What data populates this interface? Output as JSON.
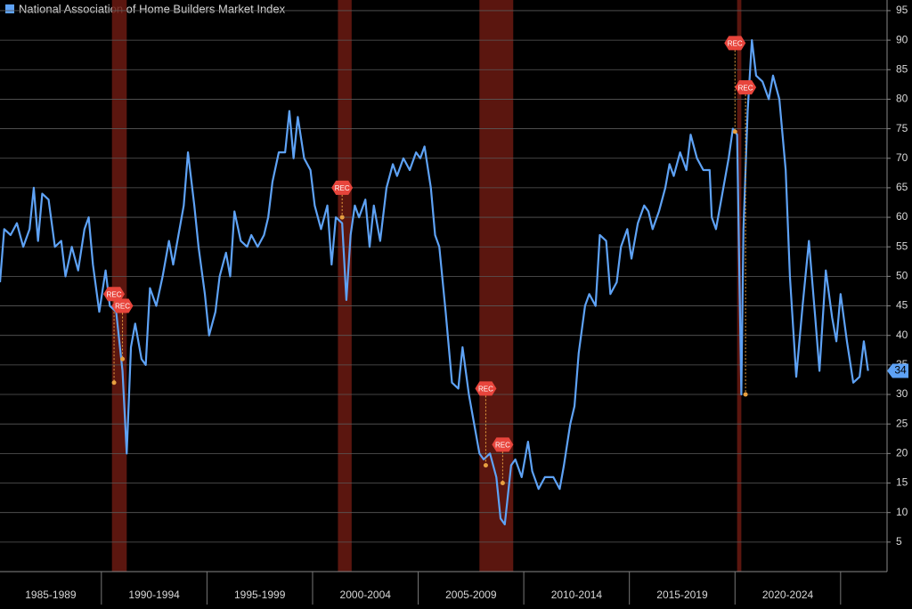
{
  "chart_data": {
    "type": "line",
    "x": [
      1985.2,
      1985.4,
      1985.7,
      1986.0,
      1986.3,
      1986.6,
      1986.8,
      1987.0,
      1987.2,
      1987.5,
      1987.8,
      1988.1,
      1988.3,
      1988.6,
      1988.9,
      1989.2,
      1989.4,
      1989.6,
      1989.9,
      1990.2,
      1990.4,
      1990.7,
      1991.0,
      1991.2,
      1991.4,
      1991.6,
      1991.9,
      1992.1,
      1992.3,
      1992.6,
      1992.9,
      1993.2,
      1993.4,
      1993.7,
      1993.9,
      1994.1,
      1994.4,
      1994.6,
      1994.9,
      1995.1,
      1995.4,
      1995.6,
      1995.9,
      1996.1,
      1996.3,
      1996.6,
      1996.9,
      1997.1,
      1997.4,
      1997.7,
      1997.9,
      1998.1,
      1998.4,
      1998.7,
      1998.9,
      1999.1,
      1999.3,
      1999.6,
      1999.9,
      2000.1,
      2000.4,
      2000.7,
      2000.9,
      2001.1,
      2001.4,
      2001.6,
      2001.8,
      2002.0,
      2002.2,
      2002.5,
      2002.7,
      2002.9,
      2003.2,
      2003.5,
      2003.8,
      2004.0,
      2004.3,
      2004.6,
      2004.9,
      2005.1,
      2005.3,
      2005.6,
      2005.8,
      2006.0,
      2006.3,
      2006.6,
      2006.9,
      2007.1,
      2007.4,
      2007.7,
      2007.9,
      2008.1,
      2008.4,
      2008.7,
      2008.9,
      2009.1,
      2009.4,
      2009.6,
      2009.9,
      2010.2,
      2010.4,
      2010.7,
      2011.0,
      2011.4,
      2011.7,
      2011.9,
      2012.2,
      2012.4,
      2012.6,
      2012.9,
      2013.1,
      2013.4,
      2013.6,
      2013.9,
      2014.1,
      2014.4,
      2014.6,
      2014.9,
      2015.1,
      2015.4,
      2015.7,
      2015.9,
      2016.1,
      2016.4,
      2016.7,
      2016.9,
      2017.1,
      2017.4,
      2017.7,
      2017.9,
      2018.2,
      2018.5,
      2018.8,
      2018.9,
      2019.1,
      2019.4,
      2019.7,
      2019.9,
      2020.1,
      2020.3,
      2020.4,
      2020.6,
      2020.8,
      2021.0,
      2021.3,
      2021.6,
      2021.8,
      2022.1,
      2022.4,
      2022.6,
      2022.9,
      2023.2,
      2023.5,
      2023.8,
      2024.0,
      2024.3,
      2024.6,
      2024.8,
      2025.0,
      2025.3,
      2025.6,
      2025.9,
      2026.1,
      2026.3
    ],
    "series": [
      {
        "name": "National Association of Home Builders Market Index",
        "color": "#5ea2f5",
        "values": [
          49,
          58,
          57,
          59,
          55,
          58,
          65,
          56,
          64,
          63,
          55,
          56,
          50,
          55,
          51,
          58,
          60,
          52,
          44,
          51,
          45,
          44,
          34,
          20,
          38,
          42,
          36,
          35,
          48,
          45,
          50,
          56,
          52,
          58,
          62,
          71,
          62,
          55,
          47,
          40,
          44,
          50,
          54,
          50,
          61,
          56,
          55,
          57,
          55,
          57,
          60,
          66,
          71,
          71,
          78,
          70,
          77,
          70,
          68,
          62,
          58,
          62,
          52,
          60,
          59,
          46,
          57,
          62,
          60,
          63,
          55,
          62,
          56,
          65,
          69,
          67,
          70,
          68,
          71,
          70,
          72,
          65,
          57,
          55,
          44,
          32,
          31,
          38,
          30,
          24,
          20,
          19,
          20,
          16,
          9,
          8,
          18,
          19,
          16,
          22,
          17,
          14,
          16,
          16,
          14,
          18,
          25,
          28,
          37,
          45,
          47,
          45,
          57,
          56,
          47,
          49,
          55,
          58,
          53,
          59,
          62,
          61,
          58,
          61,
          65,
          69,
          67,
          71,
          68,
          74,
          70,
          68,
          68,
          60,
          58,
          64,
          70,
          75,
          74,
          30,
          58,
          78,
          90,
          84,
          83,
          80,
          84,
          80,
          68,
          50,
          33,
          45,
          56,
          43,
          34,
          51,
          43,
          39,
          47,
          39,
          32,
          33,
          39,
          34
        ]
      }
    ],
    "xlim": [
      1985.2,
      2027.2
    ],
    "xticks": [
      1990,
      1995,
      2000,
      2005,
      2010,
      2015,
      2020,
      2025
    ],
    "period_labels": [
      "1985-1989",
      "1990-1994",
      "1995-1999",
      "2000-2004",
      "2005-2009",
      "2010-2014",
      "2015-2019",
      "2020-2024"
    ],
    "ylim": [
      0,
      96.8
    ],
    "yticks": [
      5,
      10,
      15,
      20,
      25,
      30,
      35,
      40,
      45,
      50,
      55,
      60,
      65,
      70,
      75,
      80,
      85,
      90,
      95
    ],
    "grid": true,
    "recessions": [
      [
        1990.5,
        1991.2
      ],
      [
        2001.2,
        2001.85
      ],
      [
        2007.9,
        2009.5
      ],
      [
        2020.1,
        2020.3
      ]
    ],
    "annotations": [
      {
        "label": "REC",
        "x": 1990.6,
        "y": 47,
        "y_end": 32
      },
      {
        "label": "REC",
        "x": 1991.0,
        "y": 45,
        "y_end": 36
      },
      {
        "label": "REC",
        "x": 2001.4,
        "y": 65,
        "y_end": 60
      },
      {
        "label": "REC",
        "x": 2008.2,
        "y": 31,
        "y_end": 18
      },
      {
        "label": "REC",
        "x": 2009.0,
        "y": 21.5,
        "y_end": 15
      },
      {
        "label": "REC",
        "x": 2020.0,
        "y": 89.5,
        "y_end": 74.5
      },
      {
        "label": "REC",
        "x": 2020.5,
        "y": 82,
        "y_end": 30
      }
    ],
    "last_value": 34
  }
}
